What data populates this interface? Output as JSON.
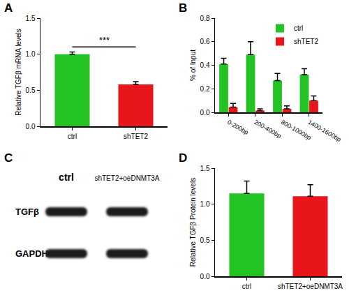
{
  "chart_data": [
    {
      "panel": "A",
      "type": "bar",
      "categories": [
        "ctrl",
        "shTET2"
      ],
      "values": [
        1.0,
        0.58
      ],
      "errors": [
        0.03,
        0.04
      ],
      "colors": [
        "#22c322",
        "#e8151b"
      ],
      "y_label": "Relative TGFβ mRNA levels",
      "ylim": [
        0,
        1.5
      ],
      "yticks": [
        {
          "value": 0,
          "label": "0.0"
        },
        {
          "value": 0.5,
          "label": "0.5"
        },
        {
          "value": 1,
          "label": "1.0"
        },
        {
          "value": 1.5,
          "label": "1.5"
        }
      ],
      "annotations": [
        {
          "text": "***",
          "from": "ctrl",
          "to": "shTET2",
          "y": 1.1
        }
      ]
    },
    {
      "panel": "B",
      "type": "bar",
      "categories": [
        "0-200bp",
        "200-400bp",
        "800-1000bp",
        "1400-1600bp"
      ],
      "series": [
        {
          "name": "ctrl",
          "color": "#22c322",
          "values": [
            0.41,
            0.49,
            0.27,
            0.32
          ],
          "errors": [
            0.05,
            0.11,
            0.06,
            0.05
          ]
        },
        {
          "name": "shTET2",
          "color": "#e8151b",
          "values": [
            0.045,
            0.015,
            0.03,
            0.1
          ],
          "errors": [
            0.03,
            0.015,
            0.025,
            0.04
          ]
        }
      ],
      "y_label": "% of Input",
      "ylim": [
        0,
        0.8
      ],
      "yticks": [
        {
          "value": 0,
          "label": "0.0"
        },
        {
          "value": 0.2,
          "label": "0.2"
        },
        {
          "value": 0.4,
          "label": "0.4"
        },
        {
          "value": 0.6,
          "label": "0.6"
        },
        {
          "value": 0.8,
          "label": "0.8"
        }
      ],
      "legend": "upper right"
    },
    {
      "panel": "C",
      "type": "blot",
      "categories": [
        "ctrl",
        "shTET2+oeDNMT3A"
      ],
      "rows": [
        "TGFβ",
        "GAPDH"
      ]
    },
    {
      "panel": "D",
      "type": "bar",
      "categories": [
        "ctrl",
        "shTET2+oeDNMT3A"
      ],
      "values": [
        1.15,
        1.11
      ],
      "errors": [
        0.17,
        0.16
      ],
      "colors": [
        "#22c322",
        "#e8151b"
      ],
      "y_label": "Relative TGFβ Protein levels",
      "ylim": [
        0,
        1.5
      ],
      "yticks": [
        {
          "value": 0,
          "label": "0.0"
        },
        {
          "value": 0.5,
          "label": "0.5"
        },
        {
          "value": 1,
          "label": "1.0"
        },
        {
          "value": 1.5,
          "label": "1.5"
        }
      ]
    }
  ]
}
